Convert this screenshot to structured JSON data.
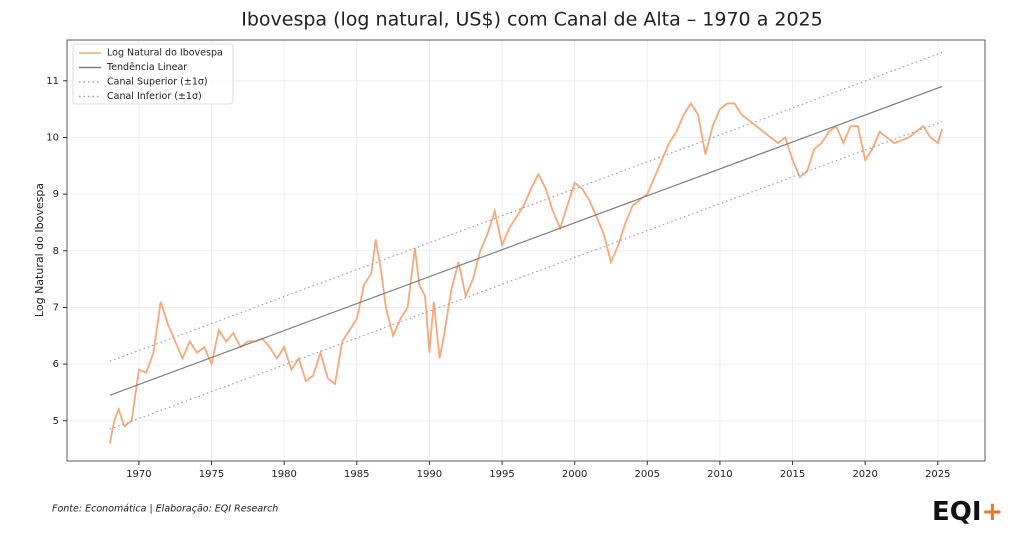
{
  "chart_data": {
    "type": "line",
    "title": "Ibovespa (log natural, US$) com Canal de Alta – 1970 a 2025",
    "y_label": "Log Natural do Ibovespa",
    "xlim": [
      1965.05,
      2028.25
    ],
    "ylim": [
      4.29,
      11.72
    ],
    "xticks": [
      1970,
      1975,
      1980,
      1985,
      1990,
      1995,
      2000,
      2005,
      2010,
      2015,
      2020,
      2025
    ],
    "yticks": [
      5,
      6,
      7,
      8,
      9,
      10,
      11
    ],
    "grid": true,
    "legend_position": "upper-left",
    "series": [
      {
        "name": "Log Natural do Ibovespa",
        "color": "#f5a97c",
        "style": "solid",
        "x": [
          1968,
          1968.3,
          1968.6,
          1969,
          1969.5,
          1970,
          1970.5,
          1971,
          1971.5,
          1972,
          1972.5,
          1973,
          1973.5,
          1974,
          1974.5,
          1975,
          1975.5,
          1976,
          1976.5,
          1977,
          1977.5,
          1978,
          1978.5,
          1979,
          1979.5,
          1980,
          1980.5,
          1981,
          1981.5,
          1982,
          1982.5,
          1983,
          1983.5,
          1984,
          1984.5,
          1985,
          1985.5,
          1986,
          1986.3,
          1986.7,
          1987,
          1987.5,
          1988,
          1988.5,
          1989,
          1989.3,
          1989.7,
          1990,
          1990.3,
          1990.7,
          1991,
          1991.5,
          1992,
          1992.5,
          1993,
          1993.5,
          1994,
          1994.5,
          1995,
          1995.5,
          1996,
          1996.5,
          1997,
          1997.5,
          1998,
          1998.5,
          1999,
          1999.5,
          2000,
          2000.5,
          2001,
          2001.5,
          2002,
          2002.5,
          2003,
          2003.5,
          2004,
          2004.5,
          2005,
          2005.5,
          2006,
          2006.5,
          2007,
          2007.5,
          2008,
          2008.5,
          2009,
          2009.5,
          2010,
          2010.5,
          2011,
          2011.5,
          2012,
          2012.5,
          2013,
          2013.5,
          2014,
          2014.5,
          2015,
          2015.5,
          2016,
          2016.5,
          2017,
          2017.5,
          2018,
          2018.5,
          2019,
          2019.5,
          2020,
          2020.5,
          2021,
          2021.5,
          2022,
          2022.5,
          2023,
          2023.5,
          2024,
          2024.5,
          2025,
          2025.3
        ],
        "values": [
          4.6,
          5.0,
          5.2,
          4.9,
          5.0,
          5.9,
          5.85,
          6.2,
          7.1,
          6.7,
          6.4,
          6.1,
          6.4,
          6.2,
          6.3,
          6.0,
          6.6,
          6.4,
          6.55,
          6.3,
          6.4,
          6.4,
          6.45,
          6.3,
          6.1,
          6.3,
          5.9,
          6.1,
          5.7,
          5.8,
          6.2,
          5.75,
          5.65,
          6.4,
          6.6,
          6.8,
          7.4,
          7.6,
          8.2,
          7.6,
          7.0,
          6.5,
          6.8,
          7.0,
          8.05,
          7.4,
          7.2,
          6.2,
          7.1,
          6.1,
          6.5,
          7.3,
          7.8,
          7.2,
          7.5,
          8.0,
          8.3,
          8.7,
          8.1,
          8.4,
          8.6,
          8.8,
          9.1,
          9.35,
          9.1,
          8.7,
          8.4,
          8.8,
          9.2,
          9.1,
          8.9,
          8.6,
          8.3,
          7.8,
          8.1,
          8.5,
          8.8,
          8.9,
          9.0,
          9.3,
          9.6,
          9.9,
          10.1,
          10.4,
          10.6,
          10.4,
          9.7,
          10.2,
          10.5,
          10.6,
          10.6,
          10.4,
          10.3,
          10.2,
          10.1,
          10.0,
          9.9,
          10.0,
          9.6,
          9.3,
          9.4,
          9.8,
          9.9,
          10.1,
          10.2,
          9.9,
          10.2,
          10.2,
          9.6,
          9.8,
          10.1,
          10.0,
          9.9,
          9.95,
          10.0,
          10.1,
          10.2,
          10.0,
          9.9,
          10.15
        ]
      },
      {
        "name": "Tendência Linear",
        "color": "#808080",
        "style": "solid",
        "x": [
          1968,
          2025.3
        ],
        "values": [
          5.45,
          10.9
        ]
      },
      {
        "name": "Canal Superior (±1σ)",
        "color": "#a0a0a0",
        "style": "dotted",
        "x": [
          1968,
          2025.3
        ],
        "values": [
          6.05,
          11.5
        ]
      },
      {
        "name": "Canal Inferior (±1σ)",
        "color": "#a0a0a0",
        "style": "dotted",
        "x": [
          1968,
          2025.3
        ],
        "values": [
          4.85,
          10.28
        ]
      }
    ],
    "source": "Fonte: Economática | Elaboração: EQI Research",
    "logo": [
      "EQI",
      "+"
    ]
  }
}
